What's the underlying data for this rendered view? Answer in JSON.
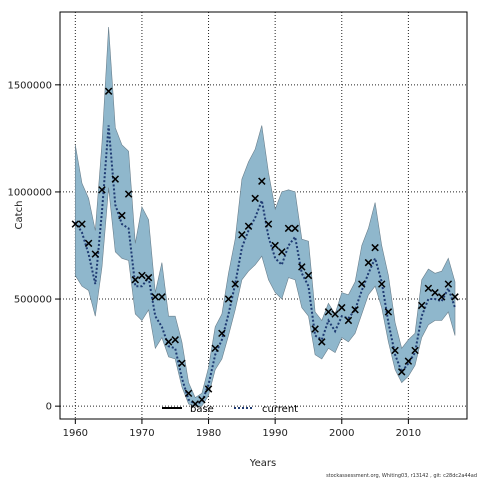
{
  "chart_data": {
    "type": "line",
    "title": "",
    "xlabel": "Years",
    "ylabel": "Catch",
    "xlim": [
      1957.7,
      2018.8
    ],
    "ylim": [
      -60000,
      1840000
    ],
    "x_ticks": [
      1960,
      1970,
      1980,
      1990,
      2000,
      2010
    ],
    "y_ticks": [
      0,
      500000,
      1000000,
      1500000
    ],
    "y_tick_labels": [
      "0",
      "500000",
      "1000000",
      "1500000"
    ],
    "grid": true,
    "legend": {
      "placement": "bottom-center",
      "entries": [
        {
          "label": "base",
          "style": "solid",
          "color": "#000000"
        },
        {
          "label": "current",
          "style": "dotted",
          "color": "#1f3b73"
        }
      ]
    },
    "years": [
      1960,
      1961,
      1962,
      1963,
      1964,
      1965,
      1966,
      1967,
      1968,
      1969,
      1970,
      1971,
      1972,
      1973,
      1974,
      1975,
      1976,
      1977,
      1978,
      1979,
      1980,
      1981,
      1982,
      1983,
      1984,
      1985,
      1986,
      1987,
      1988,
      1989,
      1990,
      1991,
      1992,
      1993,
      1994,
      1995,
      1996,
      1997,
      1998,
      1999,
      2000,
      2001,
      2002,
      2003,
      2004,
      2005,
      2006,
      2007,
      2008,
      2009,
      2010,
      2011,
      2012,
      2013,
      2014,
      2015,
      2016,
      2017
    ],
    "series": [
      {
        "name": "base",
        "kind": "observed",
        "marker": "x",
        "values": [
          850000,
          850000,
          760000,
          710000,
          1010000,
          1470000,
          1060000,
          890000,
          990000,
          590000,
          610000,
          600000,
          510000,
          510000,
          300000,
          310000,
          200000,
          60000,
          10000,
          30000,
          80000,
          270000,
          340000,
          500000,
          570000,
          800000,
          840000,
          970000,
          1050000,
          850000,
          750000,
          720000,
          830000,
          830000,
          650000,
          610000,
          360000,
          300000,
          440000,
          430000,
          460000,
          400000,
          450000,
          570000,
          670000,
          740000,
          570000,
          440000,
          260000,
          160000,
          210000,
          260000,
          470000,
          550000,
          530000,
          510000,
          570000,
          510000
        ]
      },
      {
        "name": "current",
        "kind": "model",
        "values": [
          860000,
          810000,
          710000,
          570000,
          910000,
          1310000,
          940000,
          850000,
          830000,
          560000,
          560000,
          600000,
          420000,
          370000,
          280000,
          270000,
          130000,
          30000,
          10000,
          20000,
          100000,
          240000,
          310000,
          430000,
          570000,
          740000,
          820000,
          880000,
          960000,
          790000,
          690000,
          660000,
          750000,
          790000,
          620000,
          560000,
          330000,
          310000,
          400000,
          350000,
          420000,
          410000,
          450000,
          540000,
          620000,
          690000,
          580000,
          390000,
          240000,
          160000,
          200000,
          250000,
          420000,
          500000,
          500000,
          490000,
          550000,
          460000
        ],
        "lower": [
          610000,
          560000,
          540000,
          420000,
          650000,
          1020000,
          720000,
          690000,
          680000,
          430000,
          400000,
          450000,
          270000,
          320000,
          230000,
          220000,
          90000,
          10000,
          0,
          0,
          50000,
          170000,
          220000,
          330000,
          450000,
          590000,
          630000,
          660000,
          700000,
          590000,
          530000,
          500000,
          600000,
          590000,
          460000,
          420000,
          240000,
          220000,
          270000,
          250000,
          320000,
          300000,
          340000,
          430000,
          520000,
          560000,
          460000,
          300000,
          170000,
          110000,
          140000,
          190000,
          320000,
          380000,
          400000,
          400000,
          440000,
          330000
        ],
        "upper": [
          1220000,
          1040000,
          970000,
          820000,
          1230000,
          1770000,
          1300000,
          1220000,
          1190000,
          760000,
          930000,
          870000,
          530000,
          670000,
          420000,
          420000,
          300000,
          110000,
          40000,
          60000,
          180000,
          370000,
          430000,
          620000,
          780000,
          1060000,
          1140000,
          1200000,
          1310000,
          1090000,
          920000,
          1000000,
          1010000,
          1000000,
          780000,
          770000,
          440000,
          400000,
          480000,
          430000,
          530000,
          520000,
          580000,
          750000,
          830000,
          950000,
          750000,
          610000,
          390000,
          270000,
          310000,
          340000,
          590000,
          640000,
          620000,
          630000,
          690000,
          580000
        ]
      }
    ],
    "colors": {
      "band_fill": "#8fb7cc",
      "band_edge": "#6a7f8c",
      "current_line": "#1f3b73",
      "marker": "#000000",
      "grid": "#222222"
    }
  },
  "footer": {
    "note": "stockassessment.org, Whiting03, r13142 , git: c28dc2a44ad"
  }
}
